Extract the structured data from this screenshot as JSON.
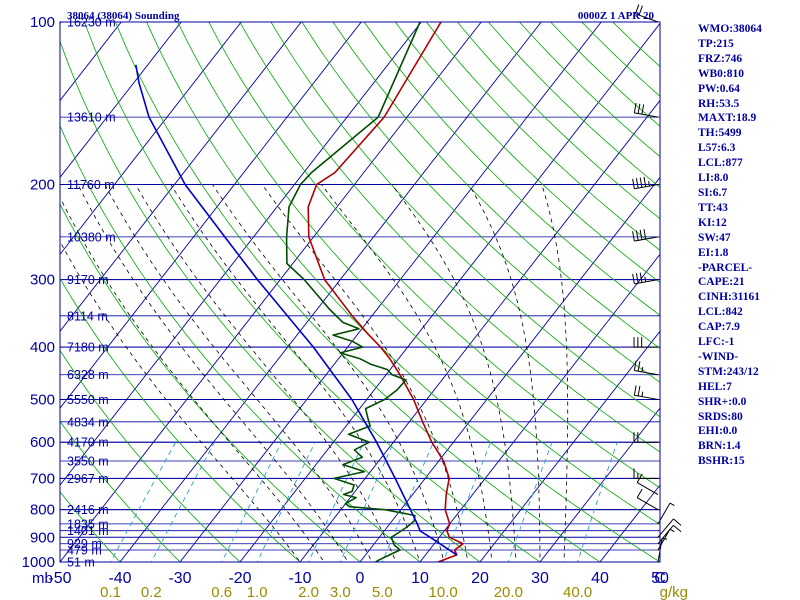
{
  "header": {
    "title": "38064 (38064) Sounding",
    "time": "0000Z  1 APR 20"
  },
  "indices": [
    "WMO:38064",
    "TP:215",
    "FRZ:746",
    "WB0:810",
    "PW:0.64",
    "RH:53.5",
    "MAXT:18.9",
    "TH:5499",
    "L57:6.3",
    "LCL:877",
    "LI:8.0",
    "SI:6.7",
    "TT:43",
    "KI:12",
    "SW:47",
    "EI:1.8",
    "-PARCEL-",
    "CAPE:21",
    "CINH:31161",
    "LCL:842",
    "CAP:7.9",
    "LFC:-1",
    "-WIND-",
    "STM:243/12",
    "HEL:7",
    "SHR+:0.0",
    "SRDS:80",
    "EHI:0.0",
    "BRN:1.4",
    "BSHR:15"
  ],
  "colors": {
    "isobar": "#0000a0",
    "isotherm": "#0000a0",
    "dry_adiabat": "#00aa00",
    "moist_adiabat": "#000000",
    "mixing_ratio": "#2a9fd6",
    "temperature": "#b00000",
    "dewpoint": "#004d00",
    "parcel": "#0000cc",
    "axis_text": "#0000a0",
    "mr_text": "#9a8a00"
  },
  "chart_data": {
    "type": "line",
    "title": "38064 (38064) Sounding",
    "subtitle": "0000Z  1 APR 20",
    "xlabel": "C",
    "ylabel": "mb",
    "xlim": [
      -50,
      50
    ],
    "ylim": [
      1000,
      100
    ],
    "y_scale": "log",
    "x_ticks": [
      -50,
      -40,
      -30,
      -20,
      -10,
      0,
      10,
      20,
      30,
      40,
      50
    ],
    "x_tick_labels": [
      "-50",
      "-40",
      "-30",
      "-20",
      "-10",
      "0",
      "10",
      "20",
      "30",
      "40",
      "50"
    ],
    "y_ticks": [
      100,
      200,
      300,
      400,
      500,
      600,
      700,
      800,
      900,
      1000
    ],
    "y_tick_labels": [
      "100",
      "200",
      "300",
      "400",
      "500",
      "600",
      "700",
      "800",
      "900",
      "1000"
    ],
    "isotherm_spacing": 10,
    "grid": true,
    "mixing_ratio_labels": [
      "0.1",
      "0.2",
      "0.6",
      "1.0",
      "2.0",
      "3.0",
      "5.0",
      "10.0",
      "20.0",
      "40.0"
    ],
    "mixing_ratio_values": [
      0.1,
      0.2,
      0.6,
      1.0,
      2.0,
      3.0,
      5.0,
      10.0,
      20.0,
      40.0
    ],
    "mixing_ratio_unit": "g/kg",
    "height_labels": [
      {
        "p": 1000,
        "label": "51 m"
      },
      {
        "p": 950,
        "label": "479 m"
      },
      {
        "p": 925,
        "label": "929 m"
      },
      {
        "p": 875,
        "label": "1401 m"
      },
      {
        "p": 850,
        "label": "1835 m"
      },
      {
        "p": 800,
        "label": "2416 m"
      },
      {
        "p": 700,
        "label": "2967 m"
      },
      {
        "p": 650,
        "label": "3550 m"
      },
      {
        "p": 600,
        "label": "4170 m"
      },
      {
        "p": 550,
        "label": "4834 m"
      },
      {
        "p": 500,
        "label": "5550 m"
      },
      {
        "p": 450,
        "label": "6328 m"
      },
      {
        "p": 400,
        "label": "7180 m"
      },
      {
        "p": 350,
        "label": "8114 m"
      },
      {
        "p": 300,
        "label": "9170 m"
      },
      {
        "p": 250,
        "label": "10380 m"
      },
      {
        "p": 200,
        "label": "11760 m"
      },
      {
        "p": 150,
        "label": "13610 m"
      },
      {
        "p": 100,
        "label": "16230 m"
      }
    ],
    "series": [
      {
        "key": "temperature",
        "points": [
          [
            1000,
            13.0
          ],
          [
            970,
            15.2
          ],
          [
            950,
            14.2
          ],
          [
            925,
            14.8
          ],
          [
            900,
            11.7
          ],
          [
            875,
            10.4
          ],
          [
            850,
            10.0
          ],
          [
            800,
            7.4
          ],
          [
            750,
            5.6
          ],
          [
            700,
            4.0
          ],
          [
            650,
            0.8
          ],
          [
            600,
            -3.6
          ],
          [
            550,
            -7.8
          ],
          [
            500,
            -12.2
          ],
          [
            450,
            -17.7
          ],
          [
            420,
            -21.5
          ],
          [
            400,
            -24.5
          ],
          [
            380,
            -28.0
          ],
          [
            350,
            -33.3
          ],
          [
            300,
            -42.6
          ],
          [
            250,
            -50.8
          ],
          [
            220,
            -54.8
          ],
          [
            200,
            -56.3
          ],
          [
            190,
            -54.8
          ],
          [
            150,
            -53.8
          ],
          [
            100,
            -56.7
          ]
        ]
      },
      {
        "key": "dewpoint",
        "points": [
          [
            1000,
            2.6
          ],
          [
            990,
            3.0
          ],
          [
            970,
            4.0
          ],
          [
            950,
            5.1
          ],
          [
            930,
            3.5
          ],
          [
            900,
            2.0
          ],
          [
            880,
            2.7
          ],
          [
            860,
            3.3
          ],
          [
            840,
            3.7
          ],
          [
            820,
            3.1
          ],
          [
            800,
            -2.6
          ],
          [
            790,
            -8.9
          ],
          [
            780,
            -10.0
          ],
          [
            760,
            -9.0
          ],
          [
            750,
            -11.5
          ],
          [
            740,
            -10.5
          ],
          [
            720,
            -11.0
          ],
          [
            700,
            -15.2
          ],
          [
            680,
            -11.0
          ],
          [
            660,
            -15.5
          ],
          [
            640,
            -13.2
          ],
          [
            620,
            -15.5
          ],
          [
            600,
            -14.0
          ],
          [
            580,
            -18.5
          ],
          [
            560,
            -16.0
          ],
          [
            540,
            -17.5
          ],
          [
            520,
            -19.0
          ],
          [
            500,
            -17.0
          ],
          [
            480,
            -16.2
          ],
          [
            460,
            -16.0
          ],
          [
            450,
            -19.0
          ],
          [
            440,
            -20.5
          ],
          [
            430,
            -24.0
          ],
          [
            420,
            -26.5
          ],
          [
            410,
            -30.5
          ],
          [
            400,
            -27.5
          ],
          [
            390,
            -30.0
          ],
          [
            380,
            -34.0
          ],
          [
            370,
            -30.5
          ],
          [
            360,
            -34.0
          ],
          [
            340,
            -38.0
          ],
          [
            300,
            -46.0
          ],
          [
            280,
            -51.0
          ],
          [
            250,
            -54.5
          ],
          [
            220,
            -58.0
          ],
          [
            200,
            -59.0
          ],
          [
            190,
            -58.7
          ],
          [
            150,
            -54.8
          ],
          [
            100,
            -60.2
          ]
        ]
      },
      {
        "key": "parcel",
        "points": [
          [
            970,
            15.2
          ],
          [
            900,
            8.5
          ],
          [
            876,
            6.0
          ],
          [
            850,
            4.6
          ],
          [
            800,
            1.6
          ],
          [
            700,
            -5.0
          ],
          [
            600,
            -12.8
          ],
          [
            500,
            -22.5
          ],
          [
            400,
            -35.7
          ],
          [
            300,
            -53.8
          ],
          [
            250,
            -64.8
          ],
          [
            200,
            -78.2
          ],
          [
            150,
            -93.0
          ],
          [
            130,
            -99.0
          ],
          [
            120,
            -102.0
          ]
        ]
      }
    ],
    "wind_barbs": [
      {
        "p": 1000,
        "dir": 10,
        "spd": 5
      },
      {
        "p": 950,
        "dir": 30,
        "spd": 5
      },
      {
        "p": 925,
        "dir": 40,
        "spd": 10
      },
      {
        "p": 900,
        "dir": 40,
        "spd": 10
      },
      {
        "p": 850,
        "dir": 30,
        "spd": 5
      },
      {
        "p": 800,
        "dir": 300,
        "spd": 10
      },
      {
        "p": 750,
        "dir": 300,
        "spd": 10
      },
      {
        "p": 700,
        "dir": 270,
        "spd": 15
      },
      {
        "p": 600,
        "dir": 270,
        "spd": 20
      },
      {
        "p": 500,
        "dir": 280,
        "spd": 25
      },
      {
        "p": 450,
        "dir": 280,
        "spd": 25
      },
      {
        "p": 400,
        "dir": 270,
        "spd": 30
      },
      {
        "p": 300,
        "dir": 260,
        "spd": 35
      },
      {
        "p": 250,
        "dir": 260,
        "spd": 40
      },
      {
        "p": 200,
        "dir": 260,
        "spd": 45
      },
      {
        "p": 150,
        "dir": 280,
        "spd": 30
      },
      {
        "p": 100,
        "dir": 290,
        "spd": 20
      }
    ]
  }
}
